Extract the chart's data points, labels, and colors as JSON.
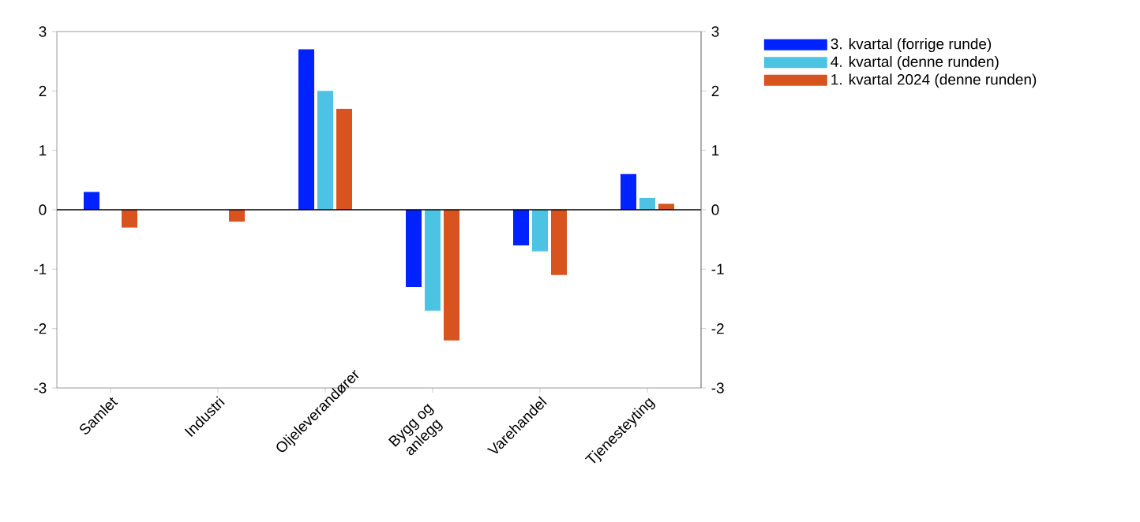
{
  "chart_data": {
    "type": "bar",
    "categories": [
      "Samlet",
      "Industri",
      "Oljeleverandører",
      "Bygg og anlegg",
      "Varehandel",
      "Tjenesteyting"
    ],
    "series": [
      {
        "name": "3. kvartal (forrige runde)",
        "color": "#0022ff",
        "values": [
          0.3,
          0,
          2.7,
          -1.3,
          -0.6,
          0.6
        ]
      },
      {
        "name": "4. kvartal (denne runden)",
        "color": "#4dc3e3",
        "values": [
          0,
          0,
          2.0,
          -1.7,
          -0.7,
          0.2
        ]
      },
      {
        "name": "1. kvartal 2024 (denne runden)",
        "color": "#d9531e",
        "values": [
          -0.3,
          -0.2,
          1.7,
          -2.2,
          -1.1,
          0.1
        ]
      }
    ],
    "ylim": [
      -3,
      3
    ],
    "yticks": [
      -3,
      -2,
      -1,
      0,
      1,
      2,
      3
    ],
    "y2lim": [
      -3,
      3
    ],
    "y2ticks": [
      -3,
      -2,
      -1,
      0,
      1,
      2,
      3
    ],
    "ref_lines": [
      {
        "axis": "y",
        "value": 0,
        "color": "#000000"
      }
    ],
    "grid": false,
    "legend": "right"
  }
}
